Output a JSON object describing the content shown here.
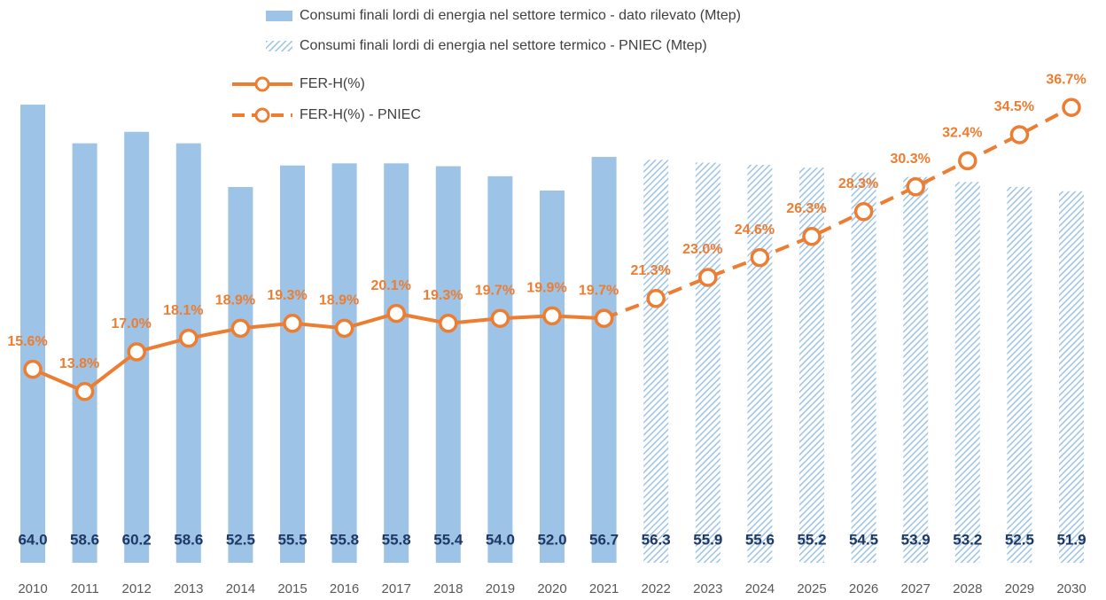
{
  "chart_data": {
    "type": "bar_line",
    "categories": [
      "2010",
      "2011",
      "2012",
      "2013",
      "2014",
      "2015",
      "2016",
      "2017",
      "2018",
      "2019",
      "2020",
      "2021",
      "2022",
      "2023",
      "2024",
      "2025",
      "2026",
      "2027",
      "2028",
      "2029",
      "2030"
    ],
    "series": [
      {
        "name": "Consumi finali lordi di energia nel settore termico - dato rilevato (Mtep)",
        "type": "bar",
        "color": "#9dc3e6",
        "pattern": "solid",
        "values": [
          64.0,
          58.6,
          60.2,
          58.6,
          52.5,
          55.5,
          55.8,
          55.8,
          55.4,
          54.0,
          52.0,
          56.7,
          null,
          null,
          null,
          null,
          null,
          null,
          null,
          null,
          null
        ],
        "value_labels": [
          "64.0",
          "58.6",
          "60.2",
          "58.6",
          "52.5",
          "55.5",
          "55.8",
          "55.8",
          "55.4",
          "54.0",
          "52.0",
          "56.7",
          null,
          null,
          null,
          null,
          null,
          null,
          null,
          null,
          null
        ]
      },
      {
        "name": "Consumi finali lordi di energia nel settore termico - PNIEC (Mtep)",
        "type": "bar",
        "color": "#9dc3e6",
        "pattern": "hatch",
        "values": [
          null,
          null,
          null,
          null,
          null,
          null,
          null,
          null,
          null,
          null,
          null,
          null,
          56.3,
          55.9,
          55.6,
          55.2,
          54.5,
          53.9,
          53.2,
          52.5,
          51.9
        ],
        "value_labels": [
          null,
          null,
          null,
          null,
          null,
          null,
          null,
          null,
          null,
          null,
          null,
          null,
          "56.3",
          "55.9",
          "55.6",
          "55.2",
          "54.5",
          "53.9",
          "53.2",
          "52.5",
          "51.9"
        ]
      },
      {
        "name": "FER-H(%)",
        "type": "line",
        "axis": "y2",
        "color": "#ed7d31",
        "dash": false,
        "values": [
          15.6,
          13.8,
          17.0,
          18.1,
          18.9,
          19.3,
          18.9,
          20.1,
          19.3,
          19.7,
          19.9,
          19.7,
          null,
          null,
          null,
          null,
          null,
          null,
          null,
          null,
          null
        ],
        "value_labels": [
          "15.6%",
          "13.8%",
          "17.0%",
          "18.1%",
          "18.9%",
          "19.3%",
          "18.9%",
          "20.1%",
          "19.3%",
          "19.7%",
          "19.9%",
          "19.7%",
          null,
          null,
          null,
          null,
          null,
          null,
          null,
          null,
          null
        ]
      },
      {
        "name": "FER-H(%) - PNIEC",
        "type": "line",
        "axis": "y2",
        "color": "#ed7d31",
        "dash": true,
        "values": [
          null,
          null,
          null,
          null,
          null,
          null,
          null,
          null,
          null,
          null,
          null,
          19.7,
          21.3,
          23.0,
          24.6,
          26.3,
          28.3,
          30.3,
          32.4,
          34.5,
          36.7
        ],
        "value_labels": [
          null,
          null,
          null,
          null,
          null,
          null,
          null,
          null,
          null,
          null,
          null,
          null,
          "21.3%",
          "23.0%",
          "24.6%",
          "26.3%",
          "28.3%",
          "30.3%",
          "32.4%",
          "34.5%",
          "36.7%"
        ]
      }
    ],
    "ylim": [
      0,
      78
    ],
    "y2lim": [
      0,
      45
    ]
  }
}
